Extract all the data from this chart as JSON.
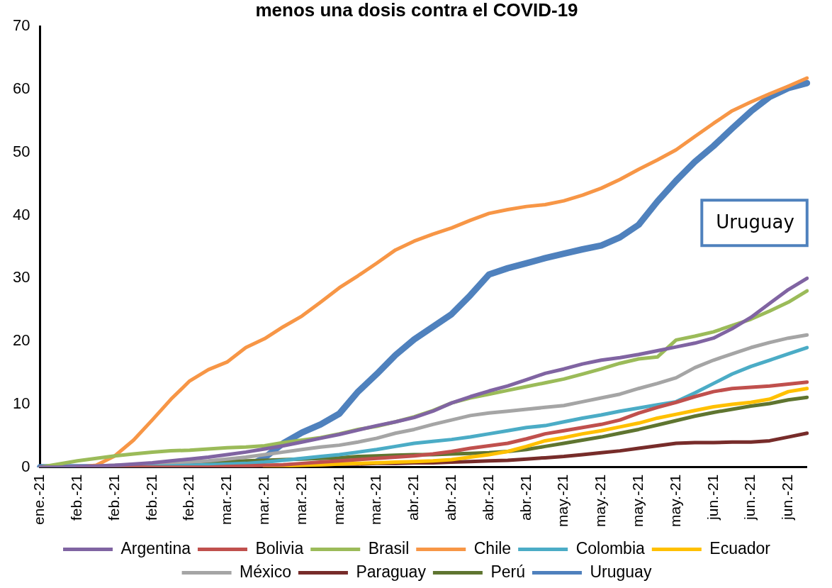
{
  "chart_data": {
    "type": "line",
    "title": "menos una dosis contra el COVID-19",
    "categories": [
      "ene.-21",
      null,
      "feb.-21",
      null,
      "feb.-21",
      null,
      "feb.-21",
      null,
      "feb.-21",
      null,
      "mar.-21",
      null,
      "mar.-21",
      null,
      "mar.-21",
      null,
      "mar.-21",
      null,
      "mar.-21",
      null,
      "abr.-21",
      null,
      "abr.-21",
      null,
      "abr.-21",
      null,
      "abr.-21",
      null,
      "may.-21",
      null,
      "may.-21",
      null,
      "may.-21",
      null,
      "may.-21",
      null,
      "jun.-21",
      null,
      "jun.-21",
      null,
      "jun.-21",
      null
    ],
    "series": [
      {
        "name": "Argentina",
        "color": "#8064a2",
        "values": [
          0,
          0,
          0.1,
          0.2,
          0.3,
          0.5,
          0.7,
          1,
          1.3,
          1.6,
          2,
          2.4,
          2.9,
          3.4,
          4,
          4.6,
          5.2,
          5.9,
          6.6,
          7.2,
          7.9,
          8.9,
          10.2,
          11.2,
          12.1,
          12.9,
          13.9,
          14.9,
          15.6,
          16.4,
          17,
          17.4,
          17.9,
          18.5,
          19.1,
          19.7,
          20.5,
          22,
          23.8,
          26,
          28.2,
          30
        ]
      },
      {
        "name": "Bolivia",
        "color": "#c0504d",
        "values": [
          null,
          null,
          0,
          0,
          0,
          0,
          0,
          0,
          0,
          0,
          0.1,
          0.2,
          0.3,
          0.4,
          0.6,
          0.8,
          1,
          1.2,
          1.4,
          1.6,
          1.8,
          2.1,
          2.5,
          3,
          3.4,
          3.8,
          4.5,
          5.3,
          5.8,
          6.3,
          6.8,
          7.5,
          8.6,
          9.5,
          10.3,
          11.2,
          12,
          12.5,
          12.7,
          12.9,
          13.2,
          13.5
        ]
      },
      {
        "name": "Brasil",
        "color": "#9bbb59",
        "values": [
          0,
          0.5,
          1,
          1.4,
          1.8,
          2.1,
          2.4,
          2.6,
          2.7,
          2.9,
          3.1,
          3.2,
          3.4,
          3.9,
          4.3,
          4.7,
          5.3,
          6,
          6.5,
          7.2,
          8,
          9,
          10.2,
          11,
          11.6,
          12.2,
          12.8,
          13.4,
          14,
          14.8,
          15.6,
          16.5,
          17.2,
          17.5,
          20.2,
          20.8,
          21.5,
          22.5,
          23.5,
          24.8,
          26.2,
          28
        ]
      },
      {
        "name": "Chile",
        "color": "#f79646",
        "values": [
          null,
          null,
          0,
          0.3,
          1.8,
          4.3,
          7.5,
          10.8,
          13.7,
          15.5,
          16.7,
          19,
          20.4,
          22.3,
          24,
          26.2,
          28.5,
          30.4,
          32.4,
          34.5,
          35.9,
          37,
          38,
          39.2,
          40.3,
          40.9,
          41.4,
          41.7,
          42.3,
          43.2,
          44.3,
          45.7,
          47.3,
          48.8,
          50.4,
          52.5,
          54.6,
          56.6,
          58,
          59.3,
          60.5,
          61.8
        ]
      },
      {
        "name": "Colombia",
        "color": "#4bacc6",
        "values": [
          0,
          0,
          0,
          0,
          0,
          0,
          0.1,
          0.2,
          0.3,
          0.4,
          0.5,
          0.6,
          0.8,
          1.1,
          1.4,
          1.7,
          2,
          2.4,
          2.8,
          3.3,
          3.8,
          4.1,
          4.4,
          4.8,
          5.3,
          5.8,
          6.3,
          6.6,
          7.2,
          7.8,
          8.3,
          8.9,
          9.4,
          9.9,
          10.4,
          11.8,
          13.3,
          14.8,
          16,
          17,
          18,
          19
        ]
      },
      {
        "name": "Ecuador",
        "color": "#ffc000",
        "values": [
          null,
          null,
          null,
          null,
          null,
          null,
          null,
          null,
          null,
          null,
          null,
          null,
          0.1,
          0.2,
          0.3,
          0.4,
          0.5,
          0.6,
          0.7,
          0.8,
          0.9,
          1,
          1.2,
          1.6,
          2,
          2.5,
          3.3,
          4.2,
          4.7,
          5.3,
          5.8,
          6.4,
          7,
          7.8,
          8.4,
          9,
          9.6,
          10,
          10.3,
          10.8,
          12,
          12.5
        ]
      },
      {
        "name": "México",
        "color": "#a5a5a5",
        "values": [
          0,
          0,
          0.1,
          0.2,
          0.3,
          0.4,
          0.5,
          0.6,
          0.8,
          1,
          1.3,
          1.6,
          2,
          2.4,
          2.8,
          3.2,
          3.5,
          4,
          4.6,
          5.4,
          6,
          6.8,
          7.5,
          8.2,
          8.6,
          8.9,
          9.2,
          9.5,
          9.8,
          10.4,
          11,
          11.6,
          12.5,
          13.3,
          14.2,
          15.8,
          17,
          18,
          19,
          19.8,
          20.5,
          21
        ]
      },
      {
        "name": "Paraguay",
        "color": "#772c2a",
        "values": [
          null,
          null,
          0,
          0,
          0,
          0,
          0,
          0,
          0,
          0,
          0,
          0.1,
          0.2,
          0.3,
          0.3,
          0.4,
          0.5,
          0.5,
          0.6,
          0.6,
          0.7,
          0.7,
          0.8,
          0.9,
          1,
          1.1,
          1.3,
          1.5,
          1.7,
          2,
          2.3,
          2.6,
          3,
          3.4,
          3.8,
          3.9,
          3.9,
          4,
          4,
          4.2,
          4.8,
          5.4
        ]
      },
      {
        "name": "Perú",
        "color": "#5f7530",
        "values": [
          0,
          0,
          0,
          0,
          0,
          0.1,
          0.2,
          0.4,
          0.5,
          0.7,
          0.9,
          1,
          1.1,
          1.2,
          1.3,
          1.4,
          1.5,
          1.7,
          1.8,
          1.9,
          2,
          2,
          2.1,
          2.2,
          2.3,
          2.5,
          2.8,
          3.3,
          3.8,
          4.3,
          4.8,
          5.4,
          6,
          6.7,
          7.4,
          8.1,
          8.7,
          9.2,
          9.7,
          10.1,
          10.7,
          11.1
        ]
      },
      {
        "name": "Uruguay",
        "color": "#4f81bd",
        "values": [
          0,
          0,
          0,
          0,
          0,
          0,
          0,
          0,
          0,
          0,
          0,
          0,
          1.5,
          3.8,
          5.5,
          6.8,
          8.5,
          12,
          14.8,
          17.8,
          20.3,
          22.3,
          24.3,
          27.3,
          30.6,
          31.6,
          32.4,
          33.2,
          33.9,
          34.6,
          35.2,
          36.5,
          38.5,
          42.2,
          45.5,
          48.5,
          51,
          53.8,
          56.5,
          58.8,
          60.2,
          61
        ]
      }
    ],
    "ylim": [
      0,
      70
    ],
    "yticks": [
      0,
      10,
      20,
      30,
      40,
      50,
      60,
      70
    ],
    "grid": false,
    "legend": "bottom",
    "marker": "none",
    "line_style": "solid",
    "annotations": [
      "Uruguay"
    ]
  }
}
